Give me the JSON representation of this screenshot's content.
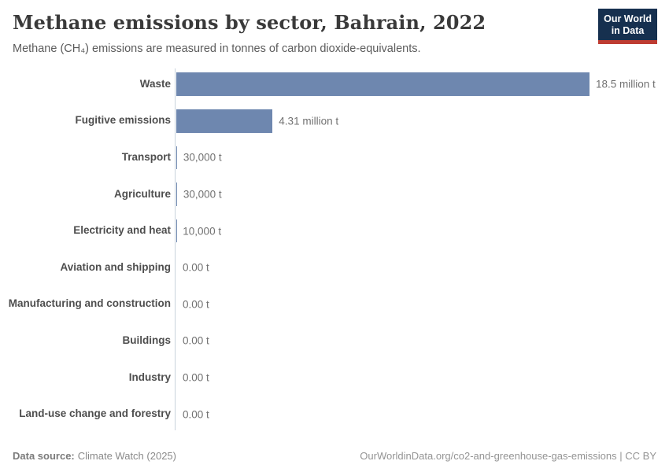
{
  "header": {
    "title": "Methane emissions by sector, Bahrain, 2022",
    "subtitle": "Methane (CH₄) emissions are measured in tonnes of carbon dioxide-equivalents.",
    "logo": {
      "line1": "Our World",
      "line2": "in Data"
    }
  },
  "chart_data": {
    "type": "bar",
    "orientation": "horizontal",
    "title": "Methane emissions by sector, Bahrain, 2022",
    "subtitle": "Methane (CH₄) emissions are measured in tonnes of carbon dioxide-equivalents.",
    "unit": "tonnes of carbon dioxide-equivalents",
    "categories": [
      "Waste",
      "Fugitive emissions",
      "Transport",
      "Agriculture",
      "Electricity and heat",
      "Aviation and shipping",
      "Manufacturing and construction",
      "Buildings",
      "Industry",
      "Land-use change and forestry"
    ],
    "values": [
      18500000,
      4310000,
      30000,
      30000,
      10000,
      0,
      0,
      0,
      0,
      0
    ],
    "value_labels": [
      "18.5 million t",
      "4.31 million t",
      "30,000 t",
      "30,000 t",
      "10,000 t",
      "0.00 t",
      "0.00 t",
      "0.00 t",
      "0.00 t",
      "0.00 t"
    ],
    "xlim": [
      0,
      18500000
    ],
    "grid": false,
    "legend": "none",
    "bar_color": "#6e87af"
  },
  "footer": {
    "source_label": "Data source:",
    "source_value": "Climate Watch (2025)",
    "url": "OurWorldinData.org/co2-and-greenhouse-gas-emissions",
    "license": " | CC BY"
  },
  "colors": {
    "bar": "#6e87af",
    "axis_line": "#c9d2dc",
    "logo_bg": "#16304f",
    "logo_red": "#be3c32"
  }
}
